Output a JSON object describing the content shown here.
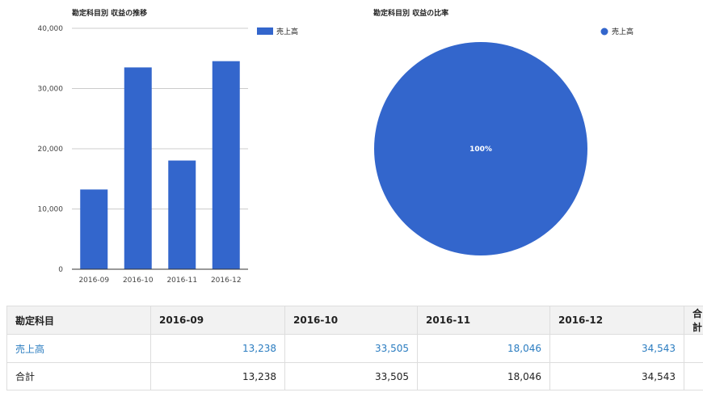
{
  "bar_chart": {
    "title": "勘定科目別 収益の推移"
  },
  "pie_chart": {
    "title": "勘定科目別 収益の比率"
  },
  "chart_data": [
    {
      "type": "bar",
      "title": "勘定科目別 収益の推移",
      "categories": [
        "2016-09",
        "2016-10",
        "2016-11",
        "2016-12"
      ],
      "series": [
        {
          "name": "売上高",
          "values": [
            13238,
            33505,
            18046,
            34543
          ]
        }
      ],
      "yticks": [
        "0",
        "10,000",
        "20,000",
        "30,000",
        "40,000"
      ],
      "ylim": [
        0,
        40000
      ],
      "grid": true,
      "legend": "top-right",
      "color": "#3366cc"
    },
    {
      "type": "pie",
      "title": "勘定科目別 収益の比率",
      "slices": [
        {
          "label": "売上高",
          "value": 100,
          "display": "100%"
        }
      ],
      "legend": "top-right",
      "color": "#3366cc"
    }
  ],
  "table": {
    "headers": [
      "勘定科目",
      "2016-09",
      "2016-10",
      "2016-11",
      "2016-12",
      "合計"
    ],
    "rows": [
      {
        "label": "売上高",
        "values": [
          "13,238",
          "33,505",
          "18,046",
          "34,543",
          ""
        ]
      },
      {
        "label": "合計",
        "values": [
          "13,238",
          "33,505",
          "18,046",
          "34,543",
          ""
        ]
      }
    ]
  }
}
